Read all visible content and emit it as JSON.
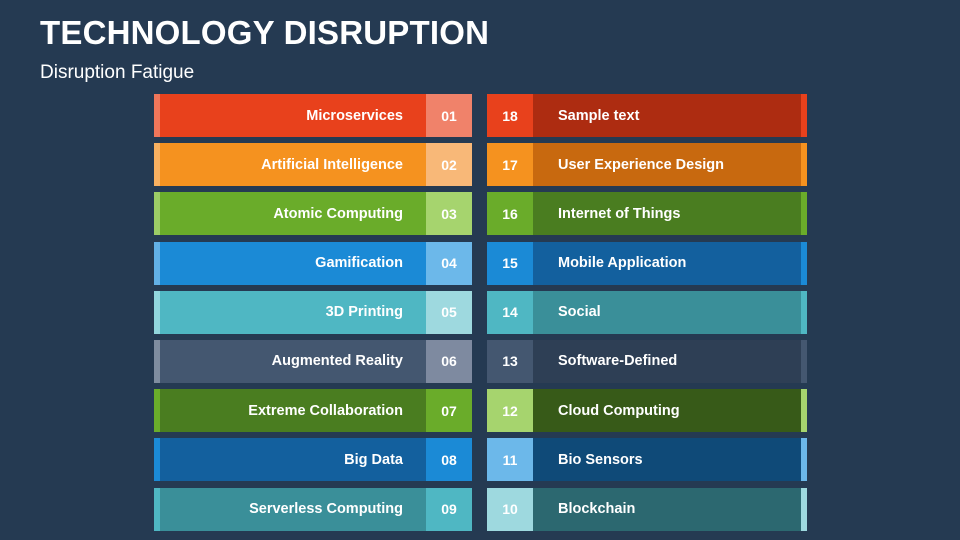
{
  "title": "TECHNOLOGY DISRUPTION",
  "subtitle": "Disruption Fatigue",
  "left_items": [
    {
      "label": "Microservices",
      "num": "01",
      "bar": "#e8411c",
      "edge": "#f0765a",
      "box": "#f0826a"
    },
    {
      "label": "Artificial Intelligence",
      "num": "02",
      "bar": "#f5921f",
      "edge": "#f8b060",
      "box": "#f8b878"
    },
    {
      "label": "Atomic Computing",
      "num": "03",
      "bar": "#6aac2a",
      "edge": "#9ccc66",
      "box": "#a6d46e"
    },
    {
      "label": "Gamification",
      "num": "04",
      "bar": "#1b8ad6",
      "edge": "#62b0e6",
      "box": "#6cb8ea"
    },
    {
      "label": "3D Printing",
      "num": "05",
      "bar": "#4fb7c3",
      "edge": "#92d6dd",
      "box": "#9ed9df"
    },
    {
      "label": "Augmented Reality",
      "num": "06",
      "bar": "#445770",
      "edge": "#7f8da0",
      "box": "#7e8aa0"
    },
    {
      "label": "Extreme Collaboration",
      "num": "07",
      "bar": "#4a7d20",
      "edge": "#6aac2a",
      "box": "#6aac2a"
    },
    {
      "label": "Big Data",
      "num": "08",
      "bar": "#13609e",
      "edge": "#1b8ad6",
      "box": "#1b8ad6"
    },
    {
      "label": "Serverless Computing",
      "num": "09",
      "bar": "#3a8f99",
      "edge": "#4fb7c3",
      "box": "#4fb7c3"
    }
  ],
  "right_items": [
    {
      "label": "Sample text",
      "num": "18",
      "bar": "#ad2c11",
      "edge": "#e8411c",
      "box": "#e8411c"
    },
    {
      "label": "User Experience Design",
      "num": "17",
      "bar": "#c8690f",
      "edge": "#f5921f",
      "box": "#f5921f"
    },
    {
      "label": "Internet of Things",
      "num": "16",
      "bar": "#4a7d20",
      "edge": "#6aac2a",
      "box": "#6aac2a"
    },
    {
      "label": "Mobile Application",
      "num": "15",
      "bar": "#13609e",
      "edge": "#1b8ad6",
      "box": "#1b8ad6"
    },
    {
      "label": "Social",
      "num": "14",
      "bar": "#3a8f99",
      "edge": "#4fb7c3",
      "box": "#4fb7c3"
    },
    {
      "label": "Software-Defined",
      "num": "13",
      "bar": "#2e3f55",
      "edge": "#445770",
      "box": "#445770"
    },
    {
      "label": "Cloud Computing",
      "num": "12",
      "bar": "#375a18",
      "edge": "#a6d46e",
      "box": "#a6d46e"
    },
    {
      "label": "Bio Sensors",
      "num": "11",
      "bar": "#0f4a78",
      "edge": "#6cb8ea",
      "box": "#6cb8ea"
    },
    {
      "label": "Blockchain",
      "num": "10",
      "bar": "#2c6870",
      "edge": "#9ed9df",
      "box": "#9ed9df"
    }
  ]
}
